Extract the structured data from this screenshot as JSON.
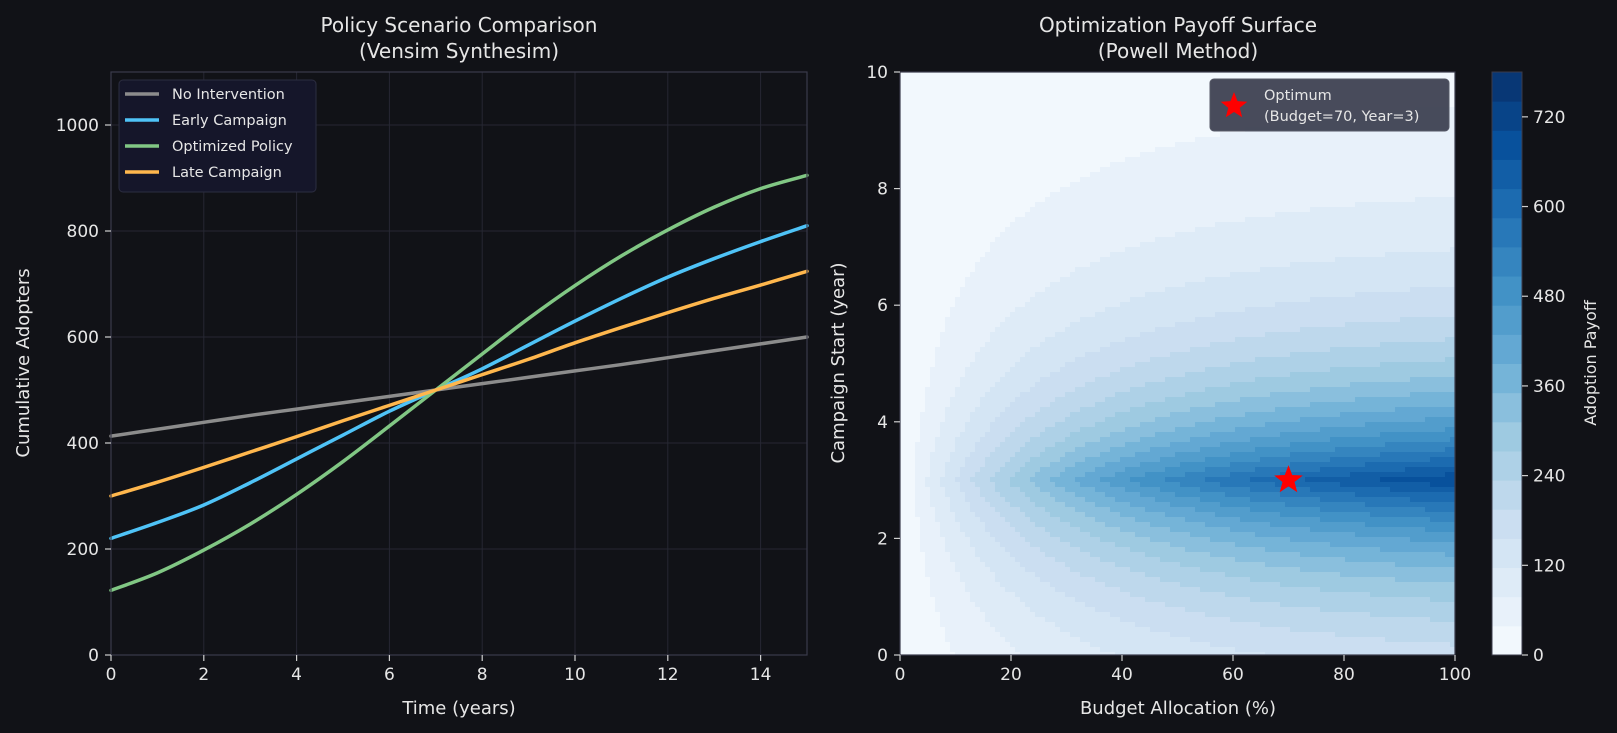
{
  "colors": {
    "background": "#111217",
    "text": "#e6e6e6",
    "axis": "#3a3b4a",
    "grid": "#262733",
    "legend_bg": "#15162a"
  },
  "chart_data": [
    {
      "type": "line",
      "title": "Policy Scenario Comparison\n(Vensim Synthesim)",
      "xlabel": "Time (years)",
      "ylabel": "Cumulative Adopters",
      "xlim": [
        0,
        15
      ],
      "ylim": [
        0,
        1100
      ],
      "xticks": [
        0,
        2,
        4,
        6,
        8,
        10,
        12,
        14
      ],
      "yticks": [
        0,
        200,
        400,
        600,
        800,
        1000
      ],
      "grid": true,
      "legend_position": "top-left",
      "x": [
        0,
        1,
        2,
        3,
        4,
        5,
        6,
        7,
        8,
        9,
        10,
        11,
        12,
        13,
        14,
        15
      ],
      "series": [
        {
          "name": "No Intervention",
          "color": "#8c8c8c",
          "values": [
            413,
            426,
            439,
            452,
            464,
            476,
            488,
            500,
            512,
            524,
            536,
            548,
            561,
            574,
            587,
            600
          ]
        },
        {
          "name": "Early Campaign",
          "color": "#4fc3f7",
          "values": [
            220,
            250,
            283,
            325,
            370,
            415,
            460,
            500,
            540,
            585,
            630,
            673,
            713,
            748,
            780,
            810
          ]
        },
        {
          "name": "Optimized Policy",
          "color": "#81c784",
          "values": [
            122,
            155,
            198,
            247,
            303,
            365,
            432,
            500,
            568,
            635,
            697,
            753,
            802,
            845,
            880,
            905
          ]
        },
        {
          "name": "Late Campaign",
          "color": "#ffb74d",
          "values": [
            300,
            326,
            354,
            383,
            412,
            442,
            471,
            500,
            529,
            558,
            589,
            618,
            646,
            673,
            698,
            724
          ]
        }
      ]
    },
    {
      "type": "heatmap",
      "title": "Optimization Payoff Surface\n(Powell Method)",
      "xlabel": "Budget Allocation (%)",
      "ylabel": "Campaign Start (year)",
      "xlim": [
        0,
        100
      ],
      "ylim": [
        0,
        10
      ],
      "xticks": [
        0,
        20,
        40,
        60,
        80,
        100
      ],
      "yticks": [
        0,
        2,
        4,
        6,
        8,
        10
      ],
      "colorbar": {
        "label": "Adoption Payoff",
        "range": [
          0,
          780
        ],
        "ticks": [
          0,
          120,
          240,
          360,
          480,
          600,
          720
        ],
        "colormap": "Blues",
        "levels": 20
      },
      "surface": {
        "max": 780,
        "peak_year": 3,
        "year_decay": 0.45,
        "budget_scale": 45
      },
      "optimum": {
        "budget": 70,
        "year": 3,
        "color": "#ff0000"
      },
      "legend_position": "top-right",
      "legend": {
        "name": "Optimum",
        "detail": "(Budget=70, Year=3)"
      }
    }
  ]
}
